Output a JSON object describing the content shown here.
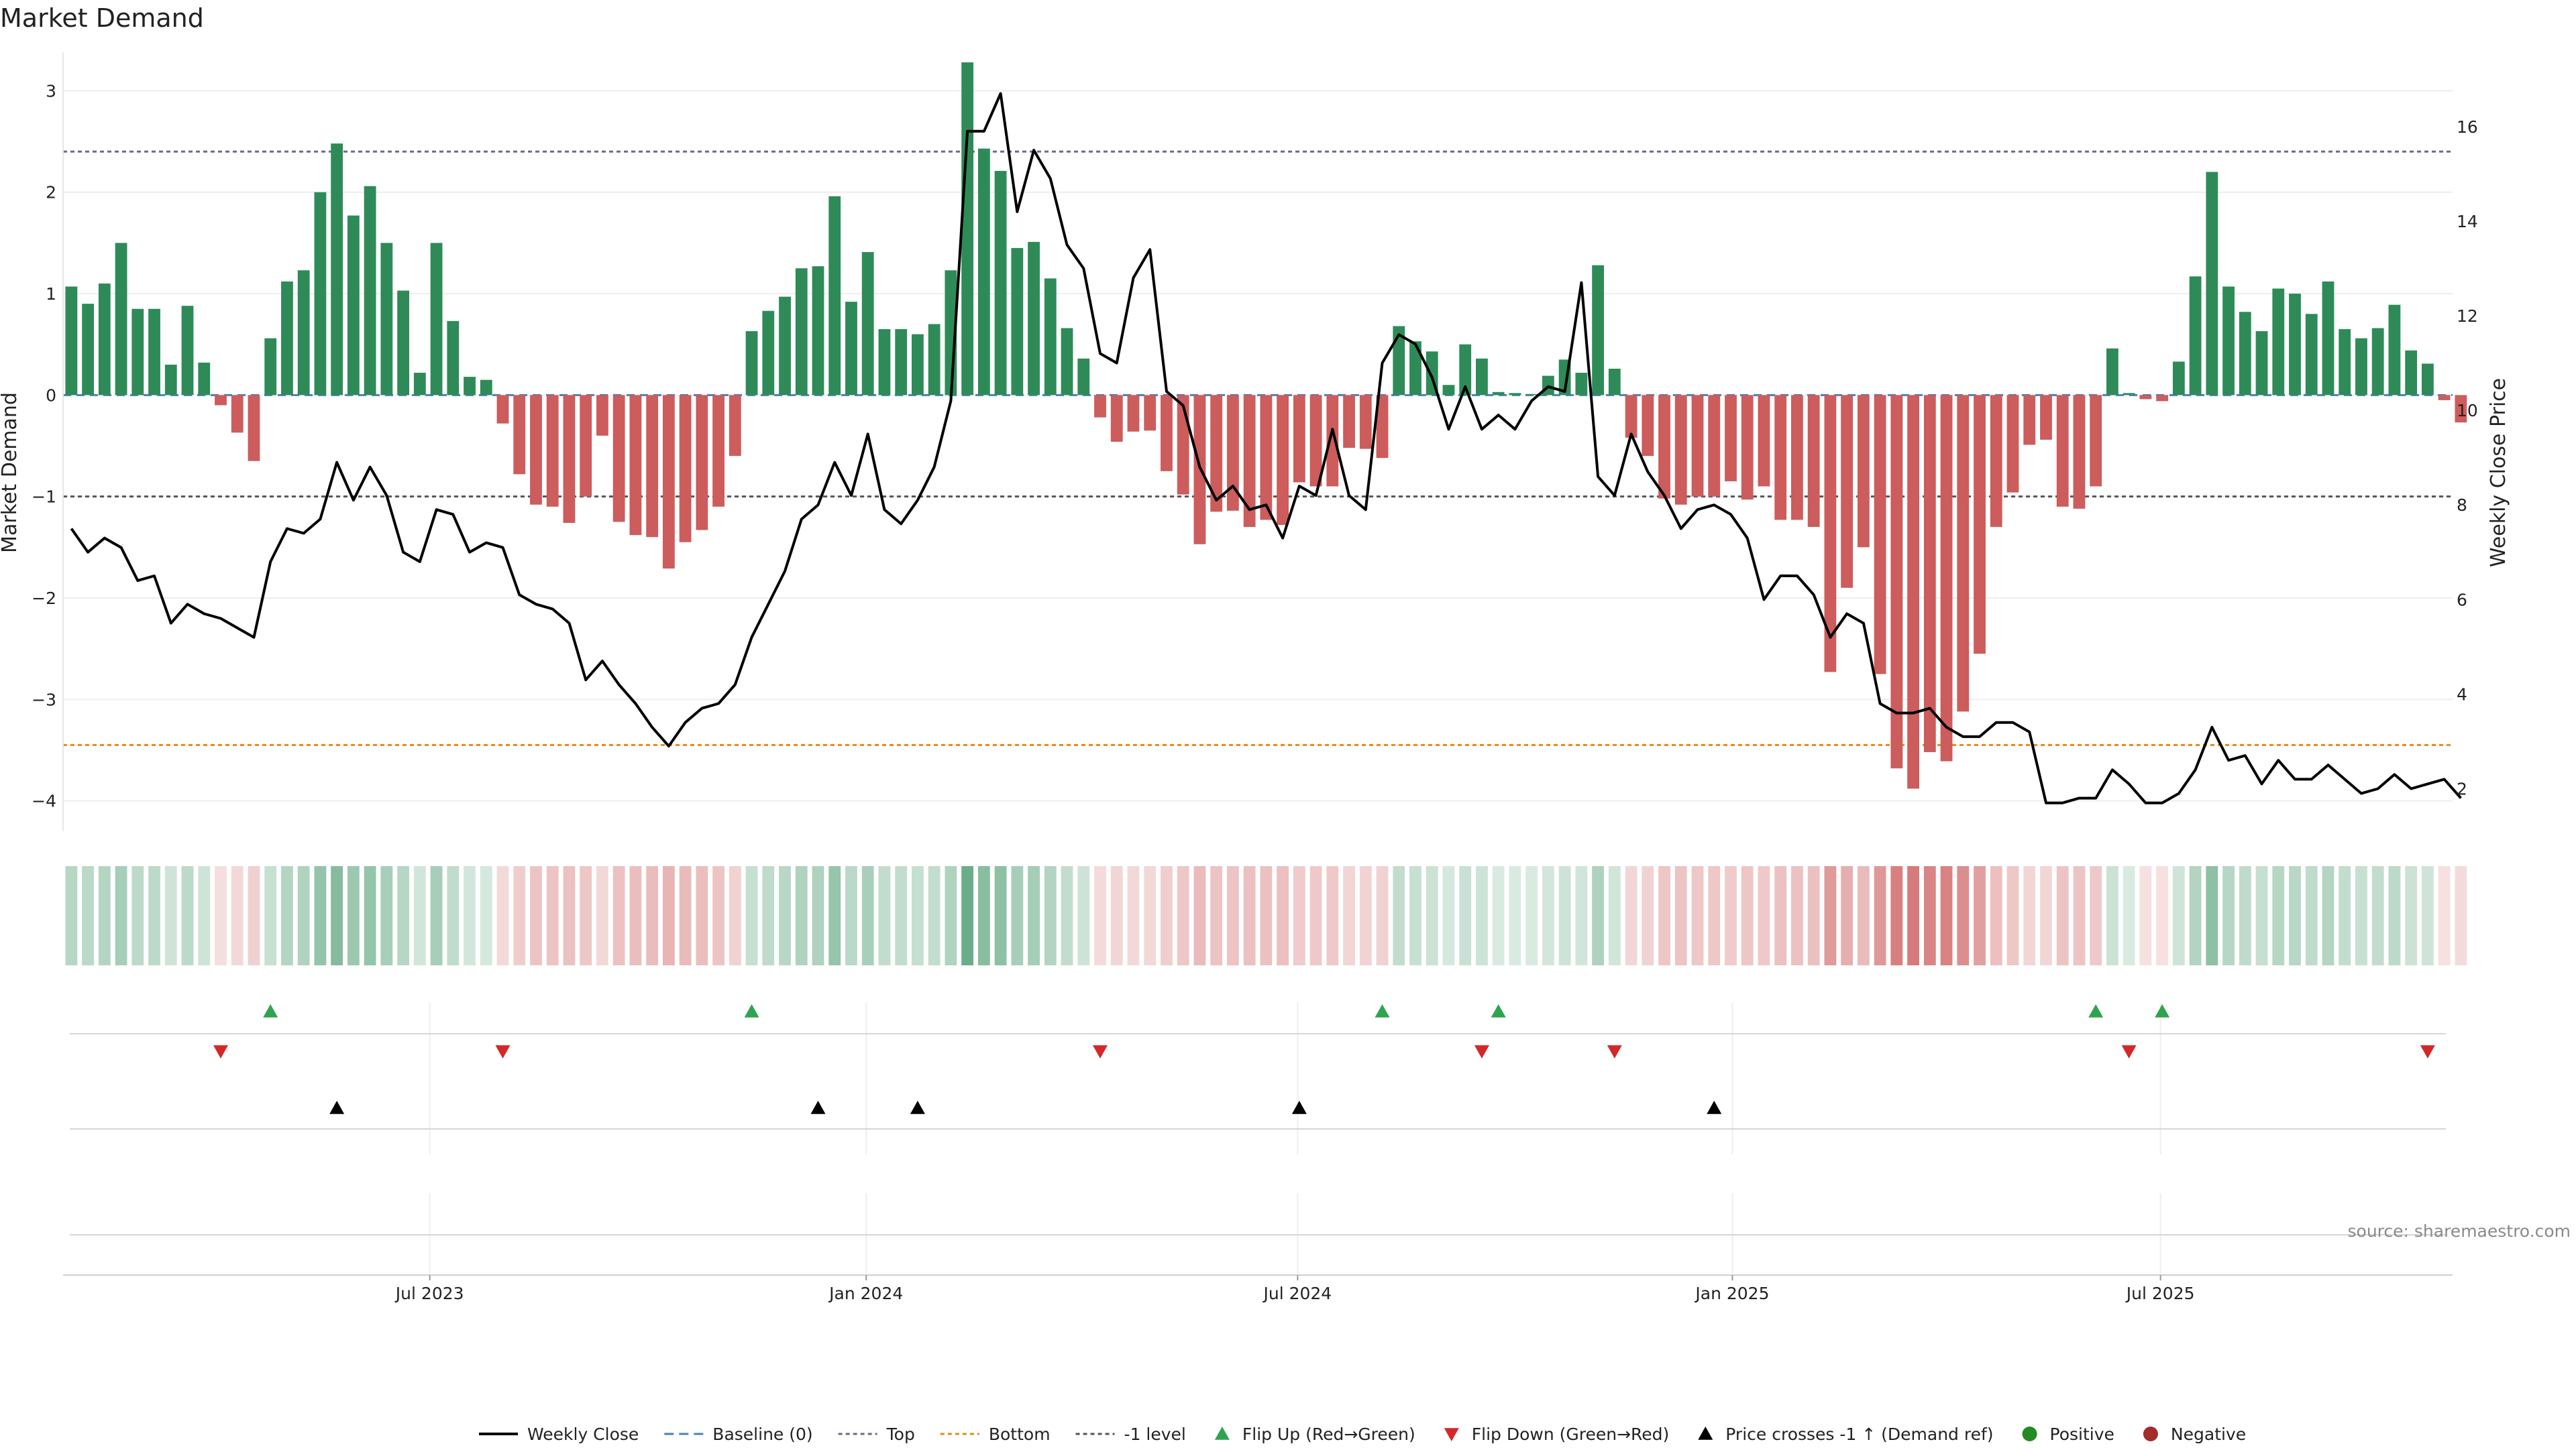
{
  "title": "Market Demand",
  "source": "source: sharemaestro.com",
  "colors": {
    "positive": "#2e8b57",
    "negative": "#cd5c5c",
    "line": "#000000",
    "top_level": "#6a6a8a",
    "bottom_level": "#e08a1e",
    "minus1_level": "#555555",
    "flip_up": "#2ea44f",
    "flip_down": "#d62728",
    "cross": "#000000",
    "positive_dot": "#228b22",
    "negative_dot": "#a52a2a"
  },
  "chart_data": {
    "type": "bar",
    "title": "Market Demand",
    "ylabel": "Market Demand",
    "y2label": "Weekly Close Price",
    "ylim": [
      -4.3,
      3.3
    ],
    "y2lim": [
      1.1,
      17.4
    ],
    "yticks": [
      3,
      2,
      1,
      0,
      -1,
      -2,
      -3,
      -4
    ],
    "ytick_labels": [
      "3",
      "2",
      "1",
      "0",
      "−1",
      "−2",
      "−3",
      "−4"
    ],
    "y2ticks": [
      16,
      14,
      12,
      10,
      8,
      6,
      4,
      2
    ],
    "y2tick_labels": [
      "16",
      "14",
      "12",
      "10",
      "8",
      "6",
      "4",
      "2"
    ],
    "x_start": "2023-03-06",
    "x_range_weeks": [
      -0.5,
      143.5
    ],
    "x_ticks": [
      {
        "label": "Jul 2023",
        "week": 21.6
      },
      {
        "label": "Jan 2024",
        "week": 47.9
      },
      {
        "label": "Jul 2024",
        "week": 73.9
      },
      {
        "label": "Jan 2025",
        "week": 100.1
      },
      {
        "label": "Jul 2025",
        "week": 125.9
      }
    ],
    "levels": {
      "top": 2.4,
      "bottom": -3.45,
      "minus_one": -1.0,
      "baseline": 0
    },
    "demand": [
      1.07,
      0.9,
      1.1,
      1.5,
      0.85,
      0.85,
      0.3,
      0.88,
      0.32,
      -0.1,
      -0.37,
      -0.65,
      0.56,
      1.12,
      1.23,
      2.0,
      2.48,
      1.77,
      2.06,
      1.5,
      1.03,
      0.22,
      1.5,
      0.73,
      0.18,
      0.15,
      -0.28,
      -0.78,
      -1.08,
      -1.1,
      -1.26,
      -1.0,
      -0.4,
      -1.25,
      -1.38,
      -1.4,
      -1.71,
      -1.45,
      -1.33,
      -1.1,
      -0.6,
      0.63,
      0.83,
      0.97,
      1.25,
      1.27,
      1.96,
      0.92,
      1.41,
      0.65,
      0.65,
      0.6,
      0.7,
      1.23,
      3.28,
      2.43,
      2.21,
      1.45,
      1.51,
      1.15,
      0.66,
      0.36,
      -0.22,
      -0.46,
      -0.36,
      -0.35,
      -0.75,
      -0.98,
      -1.47,
      -1.15,
      -1.14,
      -1.3,
      -1.23,
      -1.28,
      -0.86,
      -0.9,
      -0.9,
      -0.52,
      -0.53,
      -0.62,
      0.68,
      0.53,
      0.43,
      0.1,
      0.5,
      0.36,
      0.03,
      0.02,
      0.01,
      0.19,
      0.35,
      0.22,
      1.28,
      0.26,
      -0.42,
      -0.6,
      -1.02,
      -1.08,
      -1.0,
      -1.0,
      -0.85,
      -1.03,
      -0.9,
      -1.23,
      -1.23,
      -1.3,
      -2.73,
      -1.9,
      -1.5,
      -2.75,
      -3.68,
      -3.88,
      -3.52,
      -3.61,
      -3.12,
      -2.55,
      -1.3,
      -0.96,
      -0.49,
      -0.44,
      -1.1,
      -1.12,
      -0.9,
      0.46,
      0.02,
      -0.04,
      -0.06,
      0.33,
      1.17,
      2.2,
      1.07,
      0.82,
      0.63,
      1.05,
      1.0,
      0.8,
      1.12,
      0.65,
      0.56,
      0.66,
      0.89,
      0.44,
      0.31,
      -0.05,
      -0.27
    ],
    "weekly_close": [
      7.5,
      7.0,
      7.3,
      7.1,
      6.4,
      6.5,
      5.5,
      5.9,
      5.7,
      5.6,
      5.4,
      5.2,
      6.8,
      7.5,
      7.4,
      7.7,
      8.9,
      8.1,
      8.8,
      8.2,
      7.0,
      6.8,
      7.9,
      7.8,
      7.0,
      7.2,
      7.1,
      6.1,
      5.9,
      5.8,
      5.5,
      4.3,
      4.7,
      4.2,
      3.8,
      3.3,
      2.9,
      3.4,
      3.7,
      3.8,
      4.2,
      5.2,
      5.9,
      6.6,
      7.7,
      8.0,
      8.9,
      8.2,
      9.5,
      7.9,
      7.6,
      8.1,
      8.8,
      10.2,
      15.9,
      15.9,
      16.7,
      14.2,
      15.5,
      14.9,
      13.5,
      13.0,
      11.2,
      11.0,
      12.8,
      13.4,
      10.4,
      10.1,
      8.8,
      8.1,
      8.4,
      7.9,
      8.0,
      7.3,
      8.4,
      8.2,
      9.6,
      8.2,
      7.9,
      11.0,
      11.6,
      11.4,
      10.7,
      9.6,
      10.5,
      9.6,
      9.9,
      9.6,
      10.2,
      10.5,
      10.4,
      12.7,
      8.6,
      8.2,
      9.5,
      8.7,
      8.2,
      7.5,
      7.9,
      8.0,
      7.8,
      7.3,
      6.0,
      6.5,
      6.5,
      6.1,
      5.2,
      5.7,
      5.5,
      3.8,
      3.6,
      3.6,
      3.7,
      3.3,
      3.1,
      3.1,
      3.4,
      3.4,
      3.2,
      1.7,
      1.7,
      1.8,
      1.8,
      2.4,
      2.1,
      1.7,
      1.7,
      1.9,
      2.4,
      3.3,
      2.6,
      2.7,
      2.1,
      2.6,
      2.2,
      2.2,
      2.5,
      2.2,
      1.9,
      2.0,
      2.3,
      2.0,
      2.1,
      2.2,
      1.8
    ],
    "flip_up_weeks": [
      12,
      41,
      79,
      86,
      122,
      126
    ],
    "flip_down_weeks": [
      9,
      26,
      62,
      85,
      93,
      124,
      142
    ],
    "cross_weeks": [
      16,
      45,
      51,
      74,
      99
    ],
    "legend": [
      {
        "key": "line",
        "label": "Weekly Close"
      },
      {
        "key": "baseline",
        "label": "Baseline (0)"
      },
      {
        "key": "top",
        "label": "Top"
      },
      {
        "key": "bottom",
        "label": "Bottom"
      },
      {
        "key": "minus1",
        "label": "-1 level"
      },
      {
        "key": "flip_up",
        "label": "Flip Up (Red→Green)"
      },
      {
        "key": "flip_down",
        "label": "Flip Down (Green→Red)"
      },
      {
        "key": "cross",
        "label": "Price crosses -1 ↑ (Demand ref)"
      },
      {
        "key": "positive",
        "label": "Positive"
      },
      {
        "key": "negative",
        "label": "Negative"
      }
    ]
  }
}
